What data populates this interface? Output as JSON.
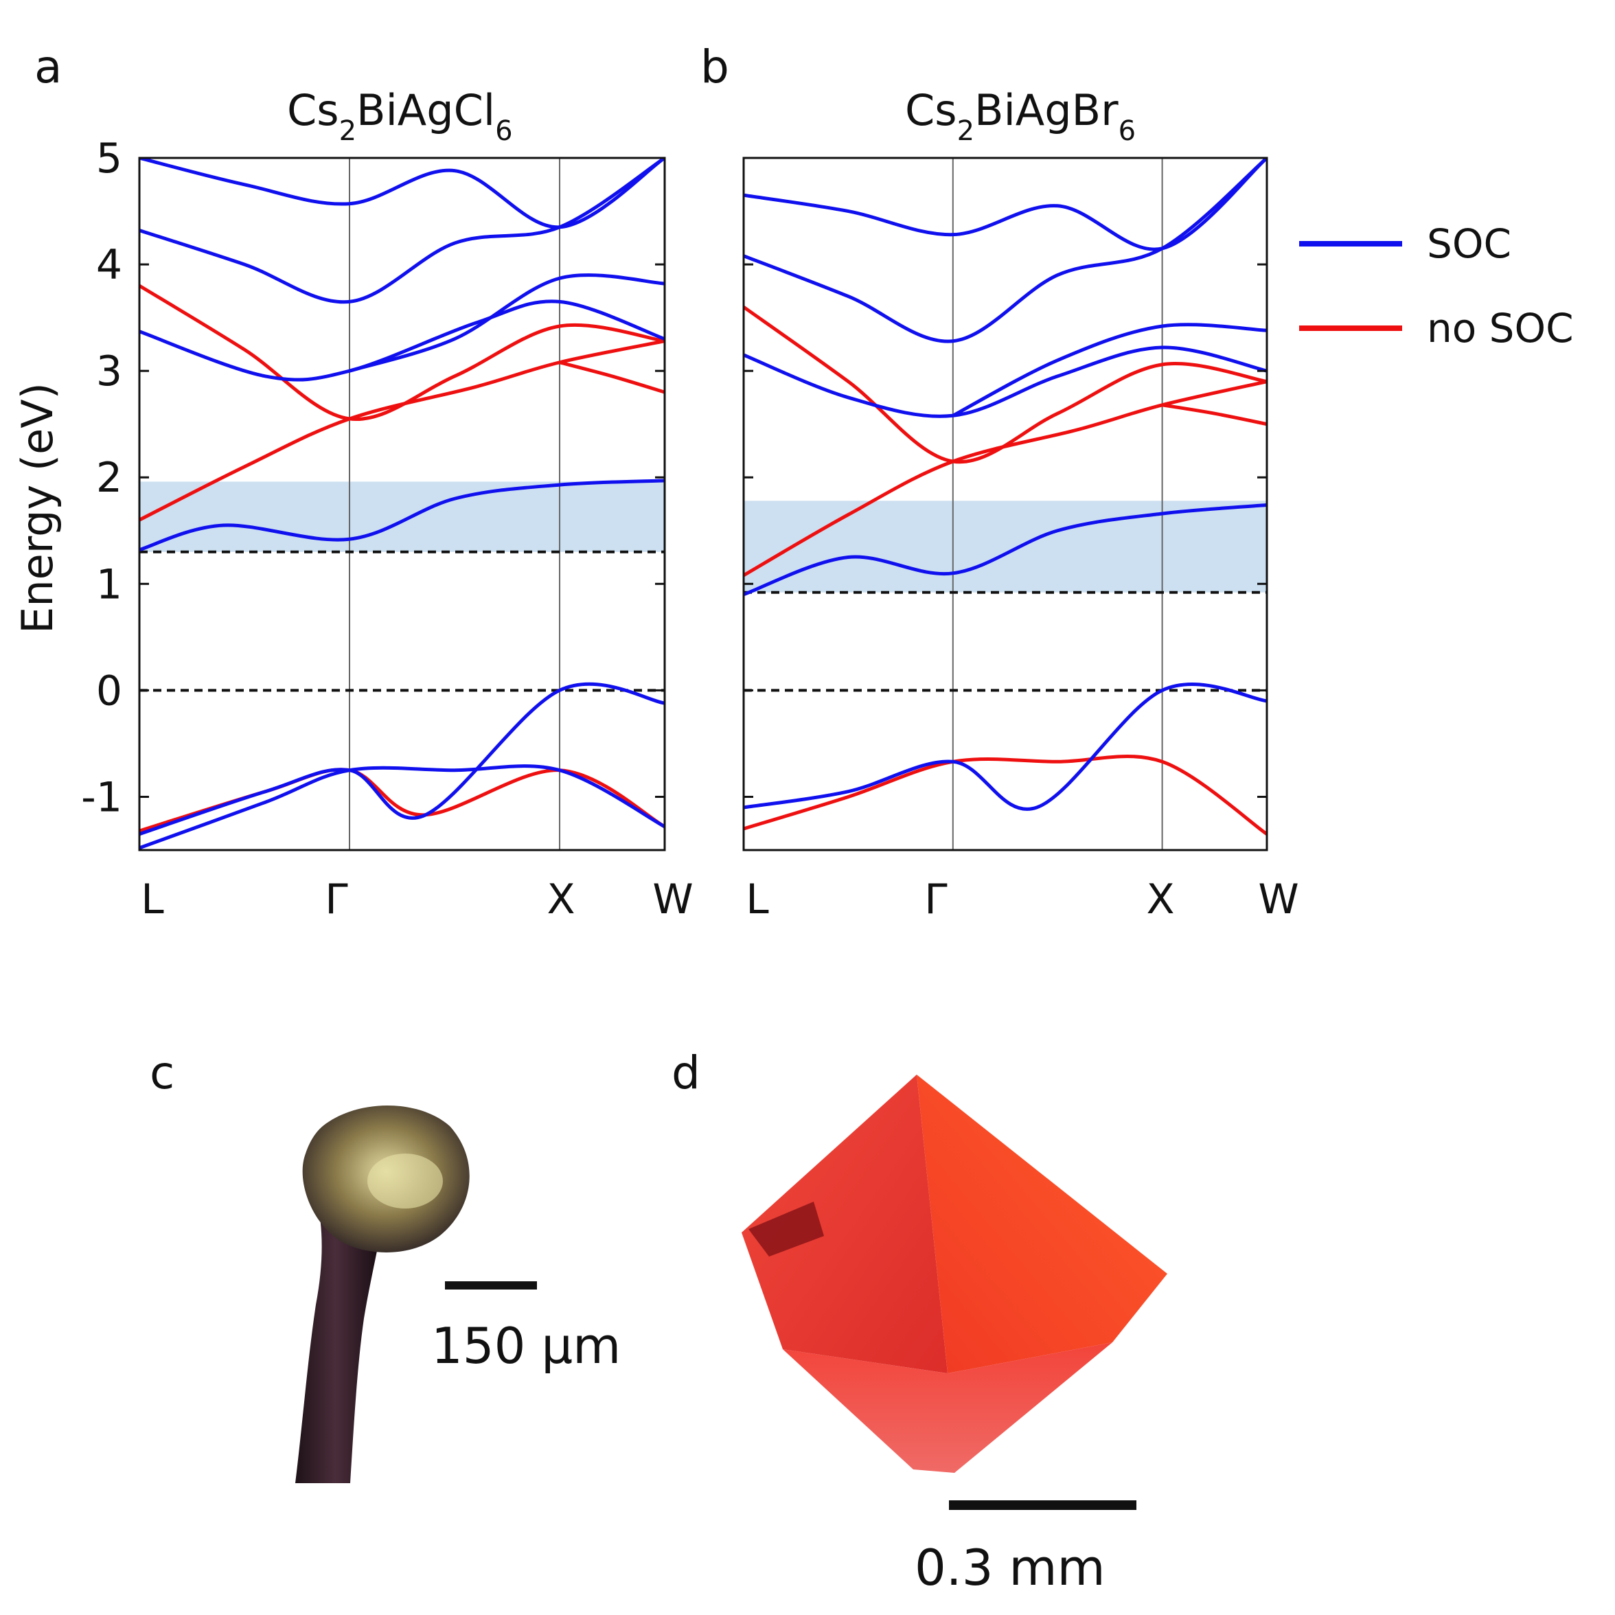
{
  "panels": {
    "a": {
      "letter": "a",
      "title_main": "Cs",
      "title_sub1": "2",
      "title_mid": "BiAgCl",
      "title_sub2": "6"
    },
    "b": {
      "letter": "b",
      "title_main": "Cs",
      "title_sub1": "2",
      "title_mid": "BiAgBr",
      "title_sub2": "6"
    },
    "c": {
      "letter": "c",
      "scale_label": "150 μm"
    },
    "d": {
      "letter": "d",
      "scale_label": "0.3 mm"
    }
  },
  "axis": {
    "ylabel": "Energy (eV)",
    "yticks": [
      "5",
      "4",
      "3",
      "2",
      "1",
      "0",
      "-1"
    ],
    "xticks": [
      "L",
      "Γ",
      "X",
      "W"
    ]
  },
  "legend": {
    "soc_label": "SOC",
    "nosoc_label": "no SOC",
    "soc_color": "#1010ee",
    "nosoc_color": "#ee1010"
  },
  "chart_data": [
    {
      "type": "line",
      "title": "Cs2BiAgCl6",
      "ylabel": "Energy (eV)",
      "ylim": [
        -1.5,
        5
      ],
      "k_points": [
        "L",
        "Γ",
        "X",
        "W"
      ],
      "k_positions": [
        0,
        1,
        2,
        2.5
      ],
      "shaded_band": [
        1.3,
        1.96
      ],
      "dashed_levels": [
        1.3,
        0
      ],
      "series": [
        {
          "name": "SOC",
          "points": [
            [
              0,
              1.32
            ],
            [
              0.4,
              1.55
            ],
            [
              1,
              1.42
            ],
            [
              1.5,
              1.8
            ],
            [
              2,
              1.93
            ],
            [
              2.5,
              1.97
            ]
          ]
        },
        {
          "name": "SOC",
          "points": [
            [
              0,
              3.37
            ],
            [
              0.6,
              2.95
            ],
            [
              1,
              3.0
            ],
            [
              1.6,
              3.45
            ],
            [
              2,
              3.65
            ],
            [
              2.5,
              3.3
            ]
          ]
        },
        {
          "name": "SOC",
          "points": [
            [
              0,
              4.32
            ],
            [
              0.5,
              4.0
            ],
            [
              1,
              3.65
            ],
            [
              1.5,
              4.2
            ],
            [
              2,
              4.35
            ],
            [
              2.5,
              5.0
            ]
          ]
        },
        {
          "name": "SOC",
          "points": [
            [
              0,
              5.0
            ],
            [
              0.5,
              4.75
            ],
            [
              1,
              4.57
            ],
            [
              1.5,
              4.88
            ],
            [
              2,
              4.35
            ],
            [
              2.5,
              5.0
            ]
          ]
        },
        {
          "name": "SOC",
          "points": [
            [
              0,
              -1.35
            ],
            [
              0.6,
              -0.95
            ],
            [
              1,
              -0.75
            ],
            [
              1.35,
              -1.18
            ],
            [
              2,
              0.0
            ],
            [
              2.5,
              -0.12
            ]
          ]
        },
        {
          "name": "SOC",
          "points": [
            [
              0,
              -1.48
            ],
            [
              0.6,
              -1.05
            ],
            [
              1,
              -0.75
            ],
            [
              1.5,
              -0.75
            ],
            [
              2,
              -0.75
            ],
            [
              2.5,
              -1.28
            ]
          ]
        },
        {
          "name": "SOC",
          "points": [
            [
              1,
              3.0
            ],
            [
              1.5,
              3.3
            ],
            [
              2,
              3.87
            ],
            [
              2.5,
              3.82
            ]
          ]
        },
        {
          "name": "no SOC",
          "points": [
            [
              0,
              1.6
            ],
            [
              0.5,
              2.1
            ],
            [
              1,
              2.55
            ],
            [
              1.6,
              2.85
            ],
            [
              2,
              3.08
            ],
            [
              2.5,
              3.28
            ]
          ]
        },
        {
          "name": "no SOC",
          "points": [
            [
              0,
              3.8
            ],
            [
              0.5,
              3.2
            ],
            [
              1,
              2.55
            ],
            [
              1.5,
              2.95
            ],
            [
              2,
              3.42
            ],
            [
              2.5,
              3.28
            ]
          ]
        },
        {
          "name": "no SOC",
          "points": [
            [
              2,
              3.08
            ],
            [
              2.25,
              2.95
            ],
            [
              2.5,
              2.8
            ]
          ]
        },
        {
          "name": "no SOC",
          "points": [
            [
              0,
              -1.32
            ],
            [
              0.6,
              -0.95
            ],
            [
              1,
              -0.75
            ],
            [
              1.35,
              -1.17
            ],
            [
              2,
              -0.75
            ],
            [
              2.5,
              -1.28
            ]
          ]
        }
      ]
    },
    {
      "type": "line",
      "title": "Cs2BiAgBr6",
      "ylabel": "Energy (eV)",
      "ylim": [
        -1.5,
        5
      ],
      "k_points": [
        "L",
        "Γ",
        "X",
        "W"
      ],
      "k_positions": [
        0,
        1,
        2,
        2.5
      ],
      "shaded_band": [
        0.92,
        1.78
      ],
      "dashed_levels": [
        0.92,
        0
      ],
      "series": [
        {
          "name": "SOC",
          "points": [
            [
              0,
              0.9
            ],
            [
              0.5,
              1.25
            ],
            [
              1,
              1.1
            ],
            [
              1.5,
              1.5
            ],
            [
              2,
              1.66
            ],
            [
              2.5,
              1.74
            ]
          ]
        },
        {
          "name": "SOC",
          "points": [
            [
              0,
              3.15
            ],
            [
              0.5,
              2.75
            ],
            [
              1,
              2.58
            ],
            [
              1.5,
              2.95
            ],
            [
              2,
              3.22
            ],
            [
              2.5,
              3.0
            ]
          ]
        },
        {
          "name": "SOC",
          "points": [
            [
              0,
              4.08
            ],
            [
              0.5,
              3.7
            ],
            [
              1,
              3.28
            ],
            [
              1.5,
              3.9
            ],
            [
              2,
              4.15
            ],
            [
              2.5,
              5.0
            ]
          ]
        },
        {
          "name": "SOC",
          "points": [
            [
              0,
              4.65
            ],
            [
              0.5,
              4.5
            ],
            [
              1,
              4.28
            ],
            [
              1.5,
              4.55
            ],
            [
              2,
              4.15
            ],
            [
              2.5,
              5.0
            ]
          ]
        },
        {
          "name": "SOC",
          "points": [
            [
              0,
              -1.1
            ],
            [
              0.5,
              -0.95
            ],
            [
              1,
              -0.67
            ],
            [
              1.4,
              -1.1
            ],
            [
              2,
              0.0
            ],
            [
              2.5,
              -0.1
            ]
          ]
        },
        {
          "name": "SOC",
          "points": [
            [
              1,
              2.58
            ],
            [
              1.5,
              3.1
            ],
            [
              2,
              3.42
            ],
            [
              2.5,
              3.38
            ]
          ]
        },
        {
          "name": "no SOC",
          "points": [
            [
              0,
              1.08
            ],
            [
              0.5,
              1.65
            ],
            [
              1,
              2.15
            ],
            [
              1.6,
              2.45
            ],
            [
              2,
              2.68
            ],
            [
              2.5,
              2.9
            ]
          ]
        },
        {
          "name": "no SOC",
          "points": [
            [
              0,
              3.6
            ],
            [
              0.5,
              2.9
            ],
            [
              1,
              2.15
            ],
            [
              1.5,
              2.6
            ],
            [
              2,
              3.06
            ],
            [
              2.5,
              2.9
            ]
          ]
        },
        {
          "name": "no SOC",
          "points": [
            [
              2,
              2.68
            ],
            [
              2.25,
              2.6
            ],
            [
              2.5,
              2.5
            ]
          ]
        },
        {
          "name": "no SOC",
          "points": [
            [
              0,
              -1.3
            ],
            [
              0.5,
              -1.0
            ],
            [
              1,
              -0.67
            ],
            [
              1.5,
              -0.67
            ],
            [
              2,
              -0.67
            ],
            [
              2.5,
              -1.35
            ]
          ]
        }
      ]
    }
  ]
}
